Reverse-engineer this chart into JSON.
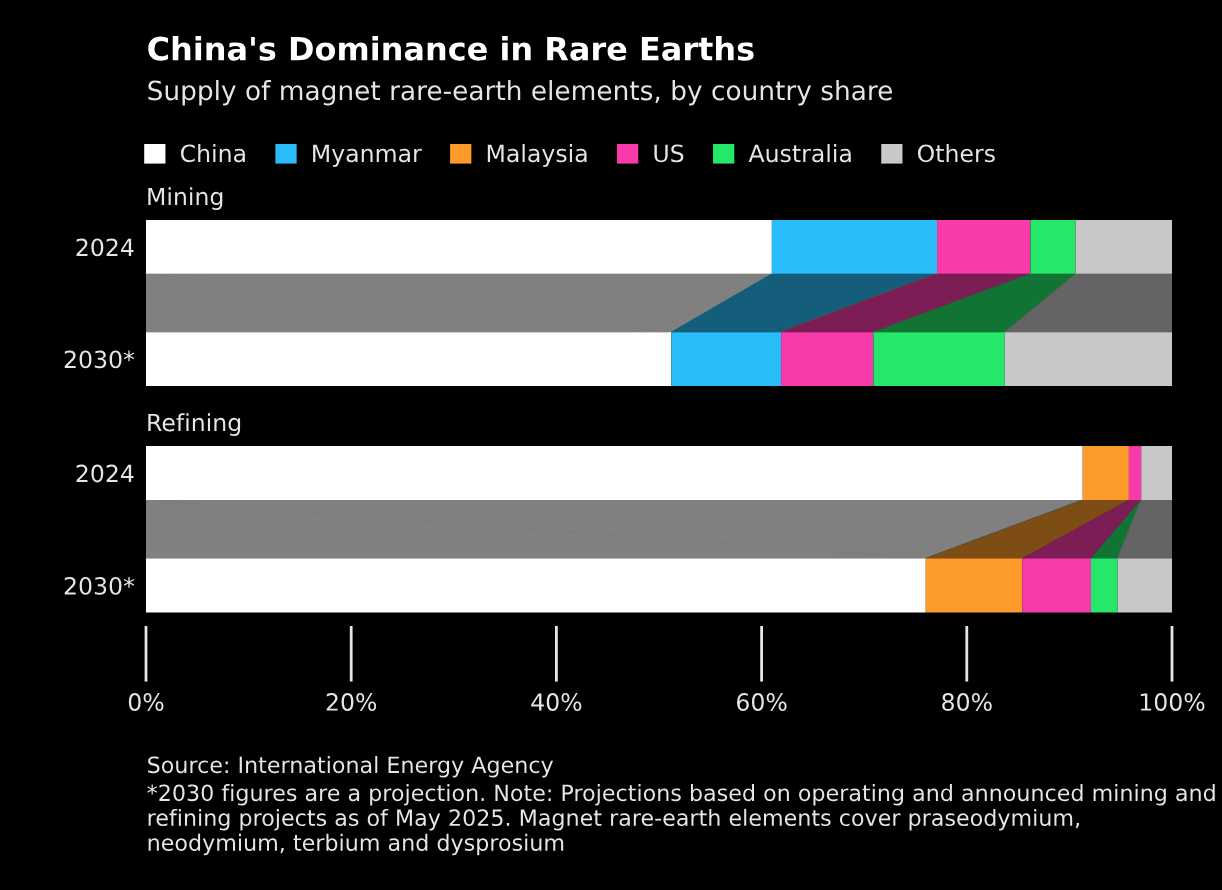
{
  "chart_data": [
    {
      "type": "bar",
      "orientation": "horizontal",
      "stacked": true,
      "title": "China's Dominance in Rare Earths",
      "subtitle": "Supply of magnet rare-earth elements, by country share",
      "annotations": [
        "Mining"
      ],
      "categories": [
        "2024",
        "2030*"
      ],
      "xlim": [
        0,
        100
      ],
      "tick_labels": "y",
      "legend": "top left",
      "grid": false,
      "series": [
        {
          "name": "China",
          "color": "#ffffff",
          "values": [
            61.0,
            51.2
          ]
        },
        {
          "name": "Myanmar",
          "color": "#29bcf8",
          "values": [
            16.1,
            10.7
          ]
        },
        {
          "name": "Malaysia",
          "color": "#fc9a2a",
          "values": [
            0,
            0
          ]
        },
        {
          "name": "US",
          "color": "#f83aaa",
          "values": [
            9.1,
            9.0
          ]
        },
        {
          "name": "Australia",
          "color": "#25e769",
          "values": [
            4.4,
            12.8
          ]
        },
        {
          "name": "Others",
          "color": "#c8c8c8",
          "values": [
            9.4,
            16.3
          ]
        }
      ]
    },
    {
      "type": "bar",
      "orientation": "horizontal",
      "stacked": true,
      "title": "Refining",
      "annotations": [
        "Source: International Energy Agency",
        "*2030 figures are a projection. Note: Projections based on operating and announced mining and refining projects as of May 2025. Magnet rare-earth elements cover praseodymium, neodymium, terbium and dysprosium"
      ],
      "categories": [
        "2024",
        "2030*"
      ],
      "xlim": [
        0,
        100
      ],
      "xticks": [
        {
          "value": 0,
          "label": "0%"
        },
        {
          "value": 20,
          "label": "20%"
        },
        {
          "value": 40,
          "label": "40%"
        },
        {
          "value": 60,
          "label": "60%"
        },
        {
          "value": 80,
          "label": "80%"
        },
        {
          "value": 100,
          "label": "100%"
        }
      ],
      "grid": false,
      "series": [
        {
          "color": "#ffffff",
          "values": [
            91.3,
            76.0
          ]
        },
        {
          "color": "#29bcf8",
          "values": [
            0,
            0
          ]
        },
        {
          "color": "#fc9a2a",
          "values": [
            4.5,
            9.4
          ]
        },
        {
          "color": "#f83aaa",
          "values": [
            1.2,
            6.7
          ]
        },
        {
          "color": "#25e769",
          "values": [
            0,
            2.6
          ]
        },
        {
          "color": "#c8c8c8",
          "values": [
            3.0,
            5.3
          ]
        }
      ]
    }
  ]
}
